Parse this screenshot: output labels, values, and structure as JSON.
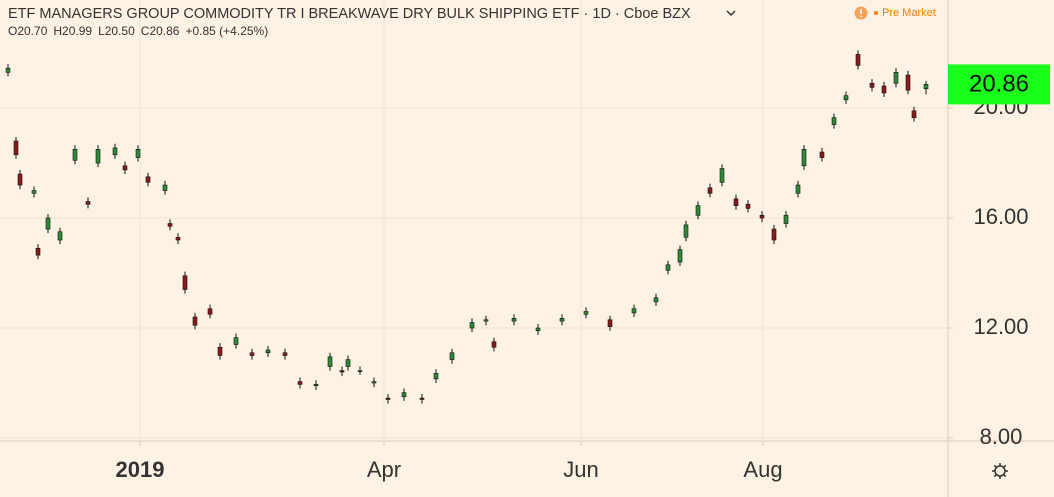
{
  "chart_data": {
    "type": "candlestick",
    "title": "ETF MANAGERS GROUP COMMODITY TR I BREAKWAVE DRY BULK SHIPPING ETF · 1D · Cboe BZX",
    "status": "Pre Market",
    "ohlc_legend": [
      "O20.70",
      "H20.99",
      "L20.50",
      "C20.86",
      "+0.85 (+4.25%)"
    ],
    "last_price": {
      "value": 20.86,
      "label": "20.86"
    },
    "last_price_color": "#1aff1a",
    "up_color": "#2f8a3a",
    "down_color": "#8b1c1c",
    "grid": true,
    "xlim": [
      0,
      237
    ],
    "xticks": [
      {
        "value": 35,
        "label": "2019"
      },
      {
        "value": 96,
        "label": "Apr"
      },
      {
        "value": 145.25,
        "label": "Jun"
      },
      {
        "value": 190.75,
        "label": "Aug"
      }
    ],
    "ylim": [
      7.89,
      23.93
    ],
    "yticks": [
      {
        "value": 8,
        "label": "8.00"
      },
      {
        "value": 12,
        "label": "12.00"
      },
      {
        "value": 16,
        "label": "16.00"
      },
      {
        "value": 20,
        "label": "20.00"
      }
    ],
    "x": [
      2,
      4,
      5,
      8.5,
      9.5,
      12,
      15,
      18.75,
      22,
      24.5,
      28.75,
      31.25,
      34.5,
      37,
      41.25,
      42.5,
      44.5,
      46.25,
      48.75,
      52.5,
      55,
      59,
      63,
      67,
      71.25,
      75,
      79,
      82.5,
      85.5,
      87,
      90,
      93.5,
      97,
      101,
      105.5,
      109,
      113,
      118,
      121.5,
      123.5,
      128.5,
      134.5,
      140.5,
      146.5,
      152.5,
      158.5,
      164,
      167,
      170,
      171.5,
      174.5,
      177.5,
      180.5,
      184,
      187,
      190.5,
      193.5,
      196.5,
      199.5,
      201,
      205.5,
      208.5,
      211.5,
      214.5,
      218,
      221,
      224,
      227,
      228.5,
      231.5
    ],
    "open": [
      21.3,
      18.8,
      17.6,
      16.9,
      14.9,
      15.6,
      15.2,
      18.1,
      16.6,
      18.0,
      18.3,
      17.9,
      18.2,
      17.5,
      17.0,
      15.8,
      15.3,
      13.9,
      12.4,
      12.7,
      11.3,
      11.4,
      11.1,
      11.1,
      11.1,
      10.05,
      9.9,
      10.6,
      10.45,
      10.6,
      10.45,
      10.0,
      9.45,
      9.5,
      9.45,
      10.15,
      10.85,
      12.0,
      12.25,
      11.5,
      12.25,
      11.9,
      12.25,
      12.5,
      12.3,
      12.55,
      12.95,
      14.1,
      14.4,
      15.3,
      16.1,
      17.1,
      17.3,
      16.7,
      16.5,
      16.1,
      15.6,
      15.8,
      16.9,
      17.9,
      18.4,
      19.4,
      20.3,
      21.95,
      20.9,
      20.8,
      20.9,
      21.2,
      19.9,
      20.7
    ],
    "high": [
      21.6,
      18.95,
      17.75,
      17.15,
      15.05,
      16.15,
      15.65,
      18.65,
      16.75,
      18.65,
      18.7,
      18.05,
      18.65,
      17.65,
      17.35,
      15.95,
      15.45,
      14.05,
      12.55,
      12.85,
      11.45,
      11.8,
      11.25,
      11.35,
      11.25,
      10.2,
      10.1,
      11.1,
      10.6,
      11.0,
      10.6,
      10.2,
      9.6,
      9.8,
      9.6,
      10.5,
      11.25,
      12.35,
      12.45,
      11.65,
      12.5,
      12.15,
      12.5,
      12.75,
      12.45,
      12.85,
      13.25,
      14.45,
      15.0,
      15.9,
      16.6,
      17.25,
      17.95,
      16.85,
      16.65,
      16.25,
      15.75,
      16.25,
      17.35,
      18.65,
      18.55,
      19.8,
      20.6,
      22.1,
      21.05,
      20.95,
      21.45,
      21.35,
      20.05,
      20.99
    ],
    "low": [
      21.15,
      18.15,
      17.05,
      16.75,
      14.5,
      15.45,
      15.05,
      17.95,
      16.35,
      17.85,
      18.15,
      17.6,
      18.05,
      17.15,
      16.85,
      15.55,
      15.05,
      13.25,
      11.95,
      12.35,
      10.85,
      11.25,
      10.85,
      10.95,
      10.85,
      9.8,
      9.75,
      10.45,
      10.25,
      10.45,
      10.3,
      9.85,
      9.25,
      9.35,
      9.25,
      10.0,
      10.7,
      11.85,
      12.1,
      11.15,
      12.1,
      11.75,
      12.1,
      12.35,
      11.9,
      12.4,
      12.8,
      13.95,
      14.25,
      15.15,
      15.95,
      16.75,
      17.15,
      16.3,
      16.2,
      15.85,
      15.05,
      15.65,
      16.75,
      17.75,
      18.05,
      19.25,
      20.15,
      21.4,
      20.6,
      20.4,
      20.75,
      20.5,
      19.5,
      20.5
    ],
    "close": [
      21.45,
      18.3,
      17.2,
      17.0,
      14.65,
      16.0,
      15.5,
      18.5,
      16.5,
      18.5,
      18.55,
      17.75,
      18.5,
      17.3,
      17.2,
      15.7,
      15.2,
      13.4,
      12.1,
      12.5,
      11.0,
      11.65,
      11.0,
      11.2,
      11.0,
      9.95,
      9.95,
      10.95,
      10.4,
      10.85,
      10.45,
      10.05,
      9.4,
      9.65,
      9.4,
      10.35,
      11.1,
      12.2,
      12.3,
      11.3,
      12.35,
      12.0,
      12.35,
      12.6,
      12.05,
      12.7,
      13.1,
      14.3,
      14.85,
      15.75,
      16.45,
      16.9,
      17.8,
      16.45,
      16.35,
      16.0,
      15.2,
      16.1,
      17.2,
      18.5,
      18.2,
      19.65,
      20.45,
      21.55,
      20.75,
      20.55,
      21.3,
      20.65,
      19.65,
      20.86
    ]
  }
}
